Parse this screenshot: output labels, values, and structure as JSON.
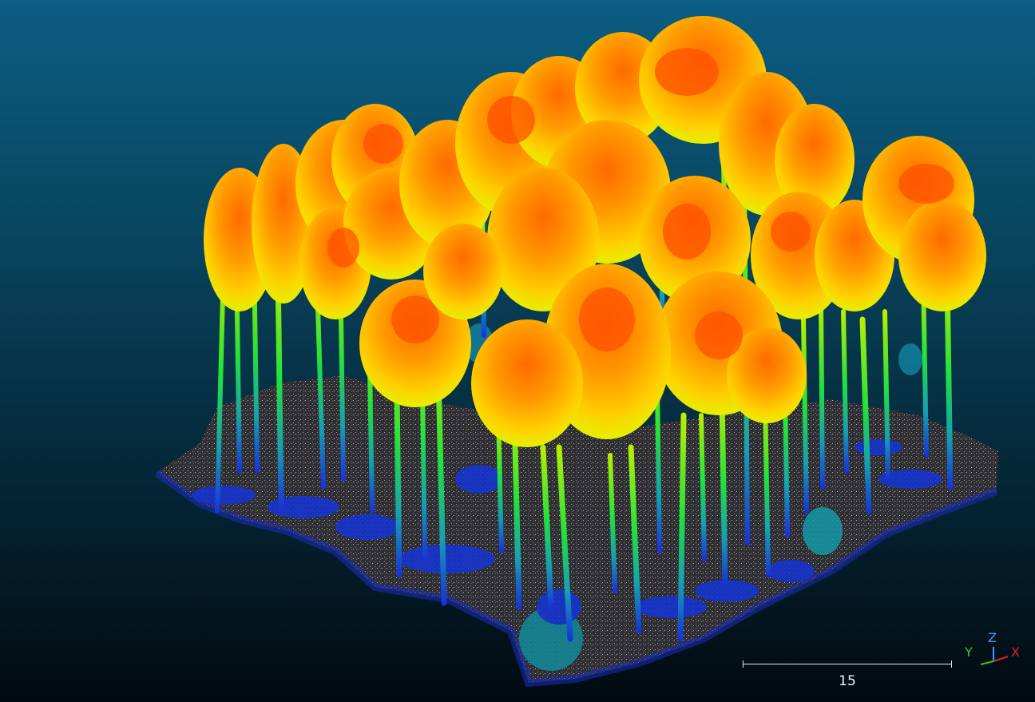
{
  "viewer": {
    "background_top": "#0b5d82",
    "background_bottom": "#020a10",
    "scalar_colormap": [
      "#1030e0",
      "#10a0c0",
      "#20e840",
      "#e8f000",
      "#ffb000",
      "#ff5a00"
    ],
    "ground_color": "#6a6a6a"
  },
  "scale_bar": {
    "label": "15"
  },
  "axes": {
    "x_label": "X",
    "y_label": "Y",
    "z_label": "Z",
    "x_color": "#e02020",
    "y_color": "#20d030",
    "z_color": "#3aa0ff"
  }
}
